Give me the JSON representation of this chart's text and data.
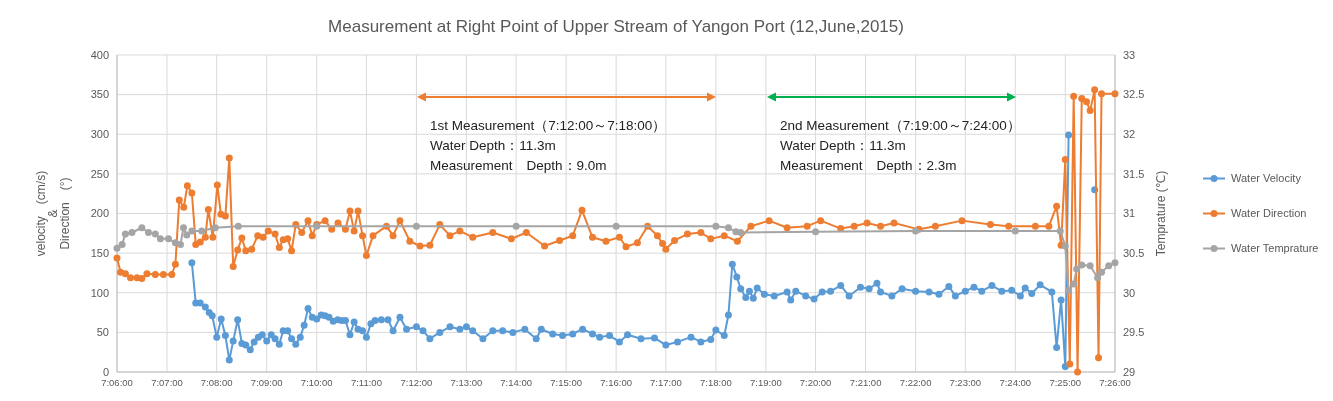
{
  "chart_data": {
    "type": "line",
    "title": "Measurement at Right  Point of Upper Stream of Yangon Port (12,June,2015)",
    "ylabel": "velocity　(cm/s)\n&\nDirection　(°)",
    "y2label": "Temprature (℃)",
    "marker": "circle",
    "grid": true,
    "legend": "right",
    "xlim": [
      7.1,
      7.4333
    ],
    "xticks": [
      {
        "value": 7.1,
        "label": "7:06:00"
      },
      {
        "value": 7.1167,
        "label": "7:07:00"
      },
      {
        "value": 7.1333,
        "label": "7:08:00"
      },
      {
        "value": 7.15,
        "label": "7:09:00"
      },
      {
        "value": 7.1667,
        "label": "7:10:00"
      },
      {
        "value": 7.1833,
        "label": "7:11:00"
      },
      {
        "value": 7.2,
        "label": "7:12:00"
      },
      {
        "value": 7.2167,
        "label": "7:13:00"
      },
      {
        "value": 7.2333,
        "label": "7:14:00"
      },
      {
        "value": 7.25,
        "label": "7:15:00"
      },
      {
        "value": 7.2667,
        "label": "7:16:00"
      },
      {
        "value": 7.2833,
        "label": "7:17:00"
      },
      {
        "value": 7.3,
        "label": "7:18:00"
      },
      {
        "value": 7.3167,
        "label": "7:19:00"
      },
      {
        "value": 7.3333,
        "label": "7:20:00"
      },
      {
        "value": 7.35,
        "label": "7:21:00"
      },
      {
        "value": 7.3667,
        "label": "7:22:00"
      },
      {
        "value": 7.3833,
        "label": "7:23:00"
      },
      {
        "value": 7.4,
        "label": "7:24:00"
      },
      {
        "value": 7.4167,
        "label": "7:25:00"
      },
      {
        "value": 7.4333,
        "label": "7:26:00"
      }
    ],
    "ylim": [
      0,
      400
    ],
    "yticks": [
      0,
      50,
      100,
      150,
      200,
      250,
      300,
      350,
      400
    ],
    "y2lim": [
      29,
      33
    ],
    "y2ticks": [
      29,
      29.5,
      30,
      30.5,
      31,
      31.5,
      32,
      32.5,
      33
    ],
    "annotations": [
      "1st Measurement（7:12:00～7:18:00）\nWater Depth：11.3m\nMeasurement　Depth：9.0m",
      "2nd Measurement（7:19:00～7:24:00）\nWater Depth：11.3m\nMeasurement　Depth：2.3m"
    ],
    "series": [
      {
        "name": "Water Velocity",
        "color": "#5b9bd5",
        "x": [
          7.125,
          7.1263,
          7.1278,
          7.1295,
          7.1308,
          7.1318,
          7.1333,
          7.1348,
          7.1362,
          7.1375,
          7.1388,
          7.1403,
          7.1417,
          7.143,
          7.1445,
          7.1458,
          7.1472,
          7.1485,
          7.15,
          7.1515,
          7.1528,
          7.1542,
          7.1555,
          7.157,
          7.1583,
          7.1597,
          7.1612,
          7.1625,
          7.1638,
          7.1652,
          7.1667,
          7.1682,
          7.1695,
          7.1708,
          7.1722,
          7.1737,
          7.175,
          7.1763,
          7.1778,
          7.1792,
          7.1805,
          7.182,
          7.1833,
          7.1848,
          7.1862,
          7.1883,
          7.1905,
          7.1922,
          7.1945,
          7.1967,
          7.2,
          7.2022,
          7.2045,
          7.2078,
          7.2112,
          7.2145,
          7.2167,
          7.2188,
          7.2222,
          7.2255,
          7.2288,
          7.2322,
          7.2362,
          7.24,
          7.2417,
          7.2455,
          7.2488,
          7.2522,
          7.2555,
          7.2588,
          7.2612,
          7.2645,
          7.2678,
          7.2705,
          7.275,
          7.2795,
          7.2833,
          7.2872,
          7.2917,
          7.295,
          7.2983,
          7.3,
          7.3028,
          7.3042,
          7.3055,
          7.307,
          7.3083,
          7.31,
          7.3112,
          7.3125,
          7.3138,
          7.3162,
          7.3195,
          7.3238,
          7.325,
          7.3267,
          7.33,
          7.3328,
          7.3355,
          7.3383,
          7.3417,
          7.3445,
          7.3483,
          7.3512,
          7.3538,
          7.355,
          7.3588,
          7.3622,
          7.3667,
          7.3712,
          7.3745,
          7.3778,
          7.38,
          7.3833,
          7.3862,
          7.3888,
          7.3922,
          7.3955,
          7.3988,
          7.4017,
          7.4033,
          7.4055,
          7.4083,
          7.4122,
          7.4138,
          7.4153,
          7.4167,
          7.4178,
          7.4188,
          7.4265
        ],
        "values": [
          138,
          87,
          87,
          82,
          75,
          71,
          44,
          67,
          46,
          15,
          39,
          66,
          36,
          34,
          28,
          38,
          44,
          47,
          39,
          47,
          42,
          35,
          52,
          52,
          42,
          35,
          44,
          59,
          80,
          69,
          67,
          72,
          71,
          69,
          64,
          66,
          65,
          65,
          47,
          63,
          54,
          52,
          44,
          61,
          65,
          66,
          66,
          52,
          69,
          54,
          57,
          52,
          42,
          50,
          57,
          54,
          57,
          52,
          42,
          52,
          52,
          50,
          54,
          42,
          54,
          48,
          46,
          48,
          54,
          48,
          44,
          46,
          38,
          47,
          42,
          43,
          34,
          38,
          44,
          38,
          41,
          53,
          46,
          72,
          136,
          120,
          105,
          94,
          102,
          93,
          106,
          98,
          96,
          101,
          91,
          102,
          96,
          92,
          101,
          102,
          109,
          96,
          107,
          105,
          112,
          101,
          96,
          105,
          102,
          101,
          98,
          108,
          96,
          102,
          107,
          102,
          109,
          102,
          103,
          96,
          106,
          99,
          110,
          101,
          31,
          91,
          7,
          299,
          null,
          230
        ]
      },
      {
        "name": "Water Direction",
        "color": "#ed7d31",
        "x": [
          7.1,
          7.1012,
          7.1028,
          7.1045,
          7.1067,
          7.1083,
          7.11,
          7.1128,
          7.1155,
          7.1183,
          7.1195,
          7.1208,
          7.1223,
          7.1235,
          7.125,
          7.1263,
          7.1278,
          7.1295,
          7.1305,
          7.132,
          7.1335,
          7.1347,
          7.1362,
          7.1375,
          7.1388,
          7.1403,
          7.1417,
          7.143,
          7.145,
          7.147,
          7.1488,
          7.1505,
          7.1528,
          7.1542,
          7.1555,
          7.157,
          7.1583,
          7.1597,
          7.1617,
          7.1638,
          7.1652,
          7.1667,
          7.1695,
          7.1717,
          7.1738,
          7.1763,
          7.1778,
          7.1792,
          7.1805,
          7.182,
          7.1833,
          7.1855,
          7.19,
          7.1922,
          7.1945,
          7.1978,
          7.2012,
          7.2045,
          7.2078,
          7.2112,
          7.2145,
          7.2188,
          7.2255,
          7.2317,
          7.2367,
          7.2428,
          7.2478,
          7.2522,
          7.2553,
          7.2588,
          7.2633,
          7.2678,
          7.27,
          7.2738,
          7.2772,
          7.2805,
          7.2822,
          7.2833,
          7.2862,
          7.2905,
          7.295,
          7.2983,
          7.3028,
          7.3072,
          7.3117,
          7.3178,
          7.3238,
          7.3305,
          7.335,
          7.3417,
          7.3462,
          7.3505,
          7.355,
          7.3595,
          7.3678,
          7.3733,
          7.3822,
          7.3917,
          7.3978,
          7.4067,
          7.4112,
          7.4138,
          7.4153,
          7.4167,
          7.4182,
          7.4195,
          7.4208,
          7.4222,
          7.4238,
          7.425,
          7.4265,
          7.4278,
          7.4288,
          7.4333
        ],
        "values": [
          144,
          126,
          124,
          119,
          119,
          118,
          124,
          123,
          123,
          123,
          136,
          217,
          208,
          235,
          226,
          161,
          164,
          170,
          205,
          170,
          236,
          199,
          197,
          270,
          133,
          154,
          169,
          153,
          155,
          172,
          170,
          178,
          174,
          157,
          167,
          168,
          153,
          186,
          176,
          191,
          172,
          186,
          191,
          180,
          188,
          180,
          203,
          178,
          203,
          172,
          147,
          172,
          184,
          172,
          191,
          165,
          159,
          160,
          186,
          172,
          178,
          170,
          176,
          168,
          176,
          159,
          166,
          172,
          204,
          170,
          165,
          170,
          158,
          163,
          184,
          172,
          162,
          155,
          166,
          174,
          176,
          168,
          172,
          165,
          184,
          191,
          182,
          184,
          191,
          181,
          184,
          188,
          184,
          188,
          180,
          184,
          191,
          186,
          184,
          184,
          184,
          209,
          160,
          268,
          10,
          348,
          0,
          345,
          341,
          330,
          356,
          18,
          351,
          351
        ]
      },
      {
        "name": "Water Temprature",
        "color": "#a5a5a5",
        "axis": "y2",
        "x": [
          7.1,
          7.1017,
          7.1028,
          7.105,
          7.1083,
          7.1105,
          7.1128,
          7.1145,
          7.1172,
          7.1195,
          7.1212,
          7.1222,
          7.1233,
          7.125,
          7.1283,
          7.1328,
          7.1405,
          7.1667,
          7.2,
          7.2333,
          7.2667,
          7.3,
          7.3042,
          7.3067,
          7.3083,
          7.3333,
          7.3667,
          7.4,
          7.415,
          7.4167,
          7.4178,
          7.4195,
          7.4205,
          7.4222,
          7.425,
          7.4275,
          7.4288,
          7.4312,
          7.4333
        ],
        "values": [
          30.56,
          30.61,
          30.74,
          30.76,
          30.82,
          30.76,
          30.74,
          30.68,
          30.68,
          30.63,
          30.61,
          30.82,
          30.73,
          30.78,
          30.78,
          30.82,
          30.84,
          30.84,
          30.84,
          30.84,
          30.84,
          30.84,
          30.82,
          30.77,
          30.76,
          30.77,
          30.78,
          30.78,
          30.78,
          30.59,
          30.03,
          30.11,
          30.3,
          30.35,
          30.34,
          30.19,
          30.26,
          30.34,
          30.38
        ]
      }
    ]
  }
}
